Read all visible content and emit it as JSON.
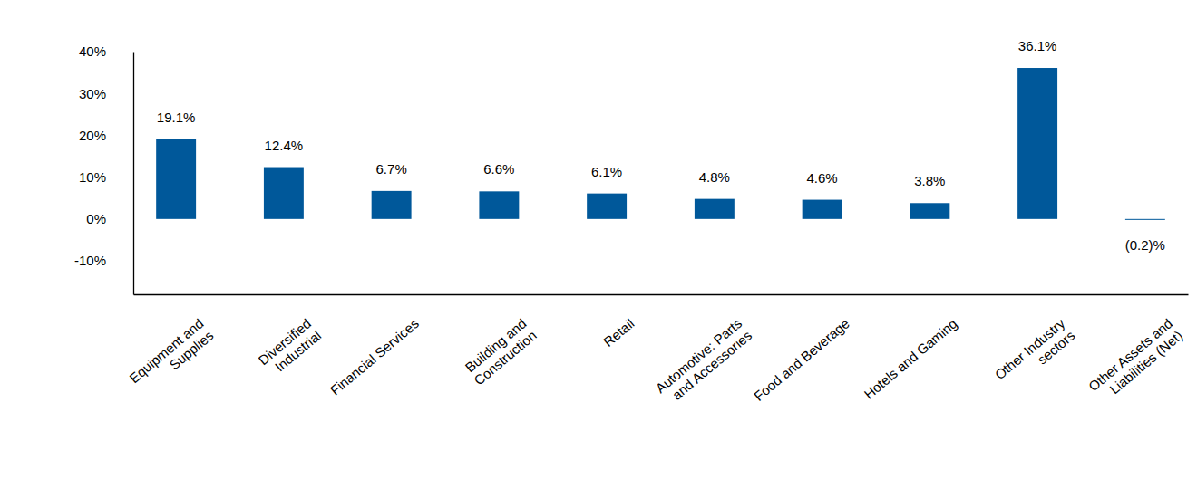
{
  "chart_data": {
    "type": "bar",
    "categories": [
      "Equipment and Supplies",
      "Diversified Industrial",
      "Financial Services",
      "Building and Construction",
      "Retail",
      "Automotive: Parts and Accessories",
      "Food and Beverage",
      "Hotels and Gaming",
      "Other Industry sectors",
      "Other Assets and Liabilities (Net)"
    ],
    "values": [
      19.1,
      12.4,
      6.7,
      6.6,
      6.1,
      4.8,
      4.6,
      3.8,
      36.1,
      -0.2
    ],
    "value_labels": [
      "19.1%",
      "12.4%",
      "6.7%",
      "6.6%",
      "6.1%",
      "4.8%",
      "4.6%",
      "3.8%",
      "36.1%",
      "(0.2)%"
    ],
    "color": "#00589a",
    "data_labels": true,
    "grid": false,
    "ylim": [
      -18,
      40
    ],
    "yticks": [
      {
        "value": -10,
        "label": "-10%"
      },
      {
        "value": 0,
        "label": "0%"
      },
      {
        "value": 10,
        "label": "10%"
      },
      {
        "value": 20,
        "label": "20%"
      },
      {
        "value": 30,
        "label": "30%"
      },
      {
        "value": 40,
        "label": "40%"
      }
    ]
  }
}
